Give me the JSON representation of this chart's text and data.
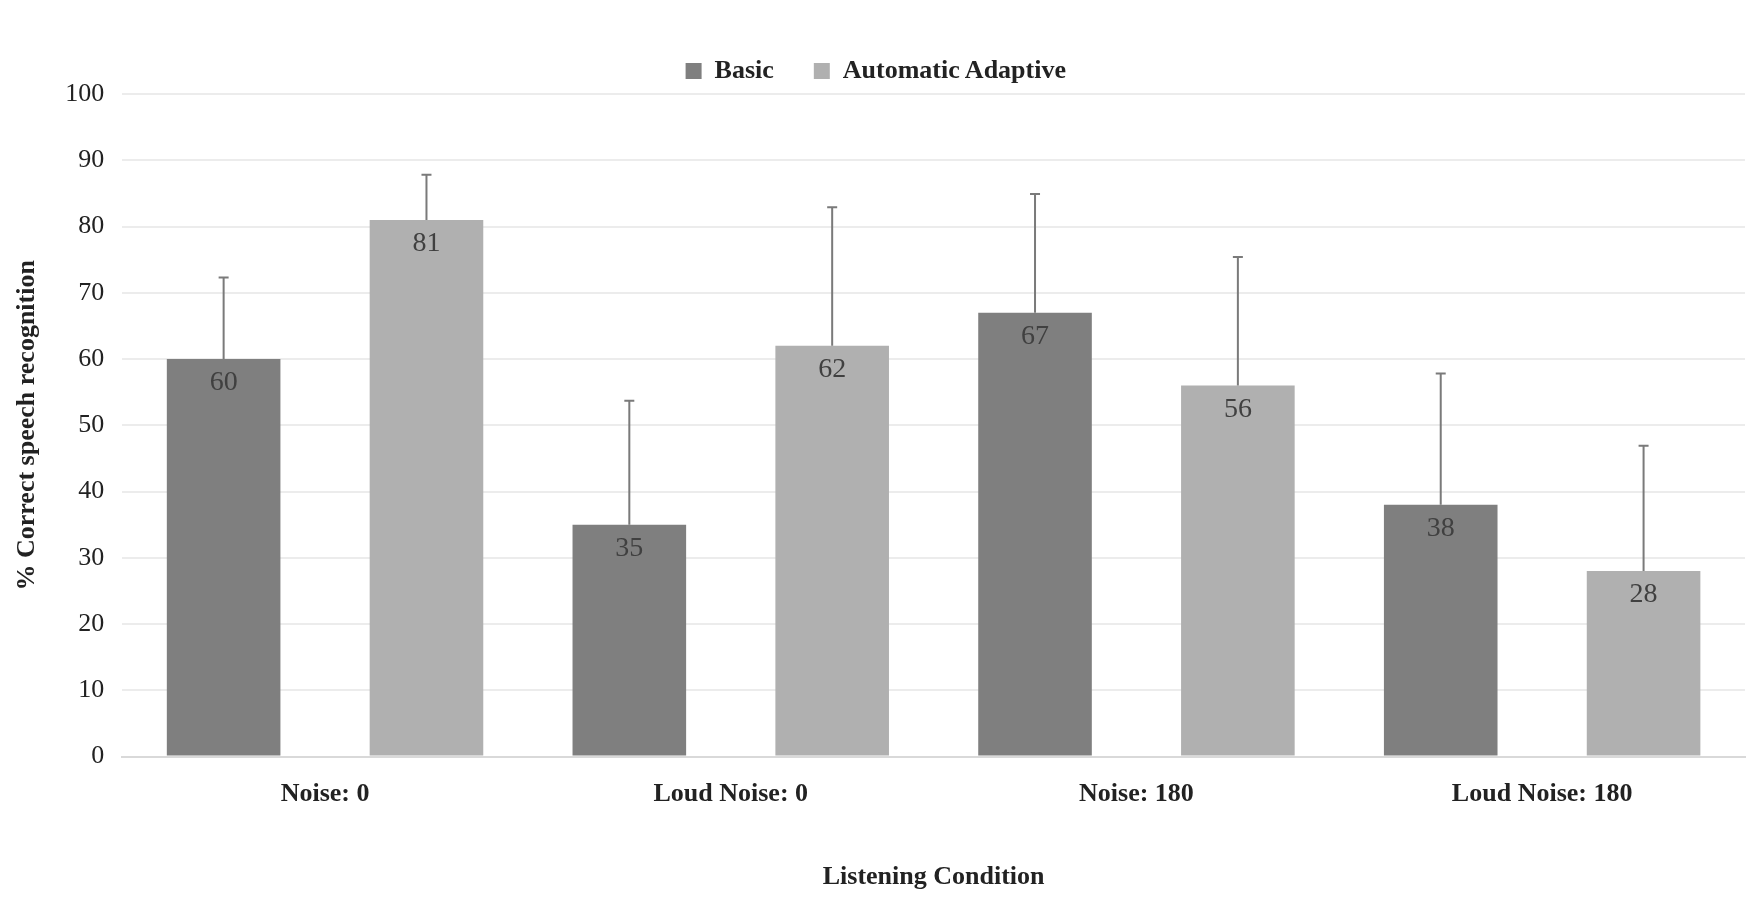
{
  "chart_data": {
    "type": "bar",
    "xlabel": "Listening Condition",
    "ylabel": "% Correct speech recognition",
    "categories": [
      "Noise: 0",
      "Loud Noise: 0",
      "Noise: 180",
      "Loud Noise: 180"
    ],
    "series": [
      {
        "name": "Basic",
        "color": "#7f7f7f",
        "values": [
          60,
          35,
          67,
          38
        ],
        "errors": [
          [
            60,
            72.3
          ],
          [
            35,
            53.7
          ],
          [
            67,
            84.9
          ],
          [
            38,
            57.8
          ]
        ]
      },
      {
        "name": "Automatic Adaptive",
        "color": "#b0b0b0",
        "values": [
          81,
          62,
          56,
          28
        ],
        "errors": [
          [
            81,
            87.8
          ],
          [
            62,
            82.9
          ],
          [
            56,
            75.4
          ],
          [
            28,
            46.9
          ]
        ]
      }
    ],
    "ylim": [
      0,
      100
    ],
    "yticks": [
      0,
      10,
      20,
      30,
      40,
      50,
      60,
      70,
      80,
      90,
      100
    ],
    "grid": "y",
    "legend": "top",
    "data_labels": true
  }
}
